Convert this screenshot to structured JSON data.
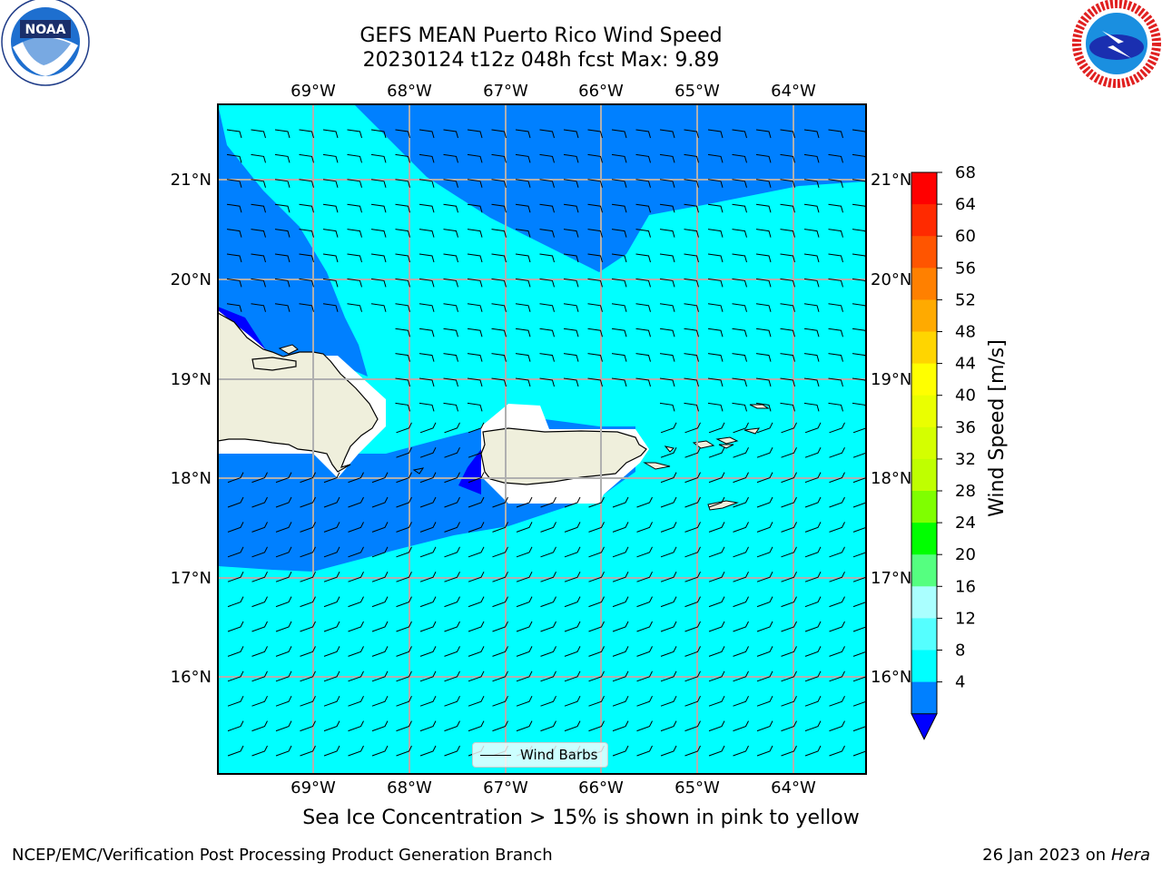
{
  "title_line1": "GEFS MEAN Puerto Rico Wind Speed",
  "title_line2": "20230124 t12z 048h fcst   Max: 9.89",
  "subtitle": "Sea Ice Concentration > 15% is shown in pink to yellow",
  "footer_left": "NCEP/EMC/Verification Post Processing Product Generation Branch",
  "footer_date": "26 Jan 2023 on ",
  "footer_machine": "Hera",
  "legend_label": "Wind Barbs",
  "colorbar_label": "Wind Speed [m/s]",
  "lon_labels": [
    "69°W",
    "68°W",
    "67°W",
    "66°W",
    "65°W",
    "64°W"
  ],
  "lat_labels": [
    "21°N",
    "20°N",
    "19°N",
    "18°N",
    "17°N",
    "16°N"
  ],
  "colorbar_ticks": [
    "68",
    "64",
    "60",
    "56",
    "52",
    "48",
    "44",
    "40",
    "36",
    "32",
    "28",
    "24",
    "20",
    "16",
    "12",
    "8",
    "4"
  ],
  "colorbar_colors": [
    "#ff0000",
    "#ff2a00",
    "#ff5500",
    "#ff8000",
    "#ffaa00",
    "#ffd500",
    "#ffff00",
    "#eaff00",
    "#d4ff00",
    "#bfff00",
    "#7fff00",
    "#00ff00",
    "#55ff80",
    "#aaffff",
    "#55ffff",
    "#00ffff",
    "#0080ff"
  ],
  "colorbar_under_color": "#0000ff",
  "map_colors": {
    "sea_low": "#0080ff",
    "sea_mid": "#00ffff",
    "sea_lowest": "#0000ff",
    "land": "#efefdc",
    "mask": "#ffffff"
  },
  "logos": {
    "left": "NOAA",
    "right": "NATIONAL WEATHER SERVICE"
  }
}
